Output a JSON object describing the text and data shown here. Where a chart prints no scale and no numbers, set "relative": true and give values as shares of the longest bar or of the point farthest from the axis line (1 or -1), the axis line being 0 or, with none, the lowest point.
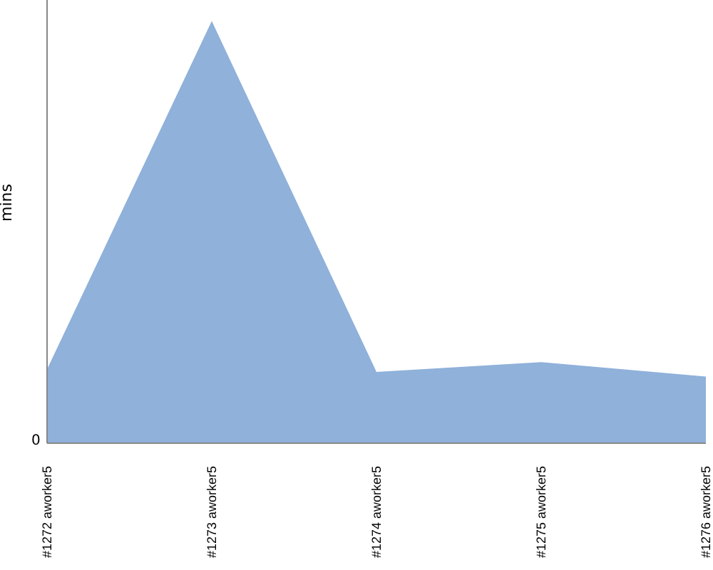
{
  "chart_data": {
    "type": "area",
    "relative": true,
    "ylabel": "mins",
    "annotations": [
      "0"
    ],
    "categories": [
      "#1272 aworker5",
      "#1273 aworker5",
      "#1274 aworker5",
      "#1275 aworker5",
      "#1276 aworker5"
    ],
    "series": [
      {
        "color": "#8fb1da",
        "values": [
          0.175,
          1,
          0.169,
          0.192,
          0.158
        ]
      }
    ],
    "grid": false,
    "legend": false
  }
}
